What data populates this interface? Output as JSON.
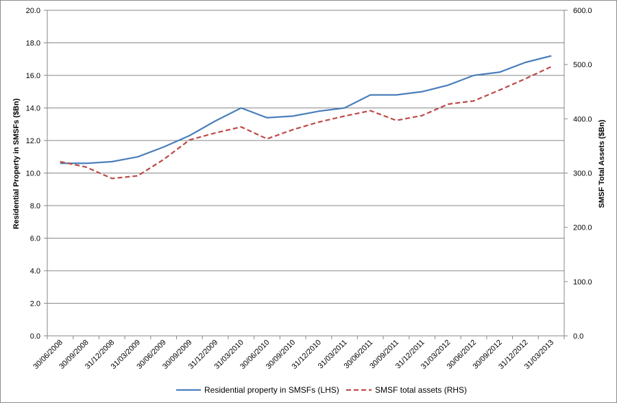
{
  "chart_data": {
    "type": "line",
    "categories": [
      "30/06/2008",
      "30/09/2008",
      "31/12/2008",
      "31/03/2009",
      "30/06/2009",
      "30/09/2009",
      "31/12/2009",
      "31/03/2010",
      "30/06/2010",
      "30/09/2010",
      "31/12/2010",
      "31/03/2011",
      "30/06/2011",
      "30/09/2011",
      "31/12/2011",
      "31/03/2012",
      "30/06/2012",
      "30/09/2012",
      "31/12/2012",
      "31/03/2013"
    ],
    "series": [
      {
        "name": "Residential property in SMSFs (LHS)",
        "axis": "left",
        "color": "#4a7ebb",
        "dash": "solid",
        "values": [
          10.6,
          10.6,
          10.7,
          11.0,
          11.6,
          12.3,
          13.2,
          14.0,
          13.4,
          13.5,
          13.8,
          14.0,
          14.8,
          14.8,
          15.0,
          15.4,
          16.0,
          16.2,
          16.8,
          17.2
        ]
      },
      {
        "name": "SMSF total assets (RHS)",
        "axis": "right",
        "color": "#be4b48",
        "dash": "dashed",
        "values": [
          321,
          311,
          290,
          295,
          325,
          361,
          374,
          385,
          363,
          380,
          394,
          405,
          415,
          397,
          406,
          427,
          433,
          453,
          474,
          496
        ]
      }
    ],
    "ylabel_left": "Residential Property in SMSFs ($Bn)",
    "ylabel_right": "SMSF Total Assets ($Bn)",
    "ylim_left": [
      0,
      20
    ],
    "ylim_right": [
      0,
      600
    ],
    "yticks_left": [
      "0.0",
      "2.0",
      "4.0",
      "6.0",
      "8.0",
      "10.0",
      "12.0",
      "14.0",
      "16.0",
      "18.0",
      "20.0"
    ],
    "yticks_right": [
      "0.0",
      "100.0",
      "200.0",
      "300.0",
      "400.0",
      "500.0",
      "600.0"
    ],
    "grid": "horizontal",
    "legend": "bottom"
  }
}
